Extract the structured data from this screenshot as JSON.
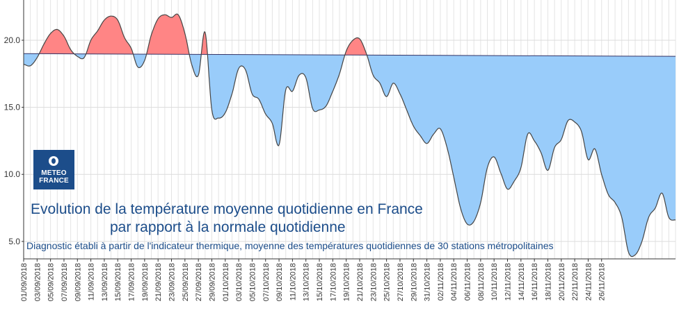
{
  "chart_data": {
    "type": "area",
    "title": "Evolution de la température moyenne quotidienne en France",
    "title_line2": "par rapport à la normale quotidienne",
    "subtitle": "Diagnostic établi à partir de l'indicateur thermique, moyenne des températures quotidiennes de 30 stations métropolitaines",
    "xlabel": "",
    "ylabel": "",
    "ylim": [
      3.7,
      23
    ],
    "y_ticks": [
      "5.0",
      "10.0",
      "15.0",
      "20.0"
    ],
    "x_ticks": [
      "01/09/2018",
      "03/09/2018",
      "05/09/2018",
      "07/09/2018",
      "09/09/2018",
      "11/09/2018",
      "13/09/2018",
      "15/09/2018",
      "17/09/2018",
      "19/09/2018",
      "21/09/2018",
      "23/09/2018",
      "25/09/2018",
      "27/09/2018",
      "29/09/2018",
      "01/10/2018",
      "03/10/2018",
      "05/10/2018",
      "07/10/2018",
      "09/10/2018",
      "11/10/2018",
      "13/10/2018",
      "15/10/2018",
      "17/10/2018",
      "19/10/2018",
      "21/10/2018",
      "23/10/2018",
      "25/10/2018",
      "27/10/2018",
      "29/10/2018",
      "31/10/2018",
      "02/11/2018",
      "04/11/2018",
      "06/11/2018",
      "08/11/2018",
      "10/11/2018",
      "12/11/2018",
      "14/11/2018",
      "16/11/2018",
      "18/11/2018",
      "20/11/2018",
      "22/11/2018",
      "24/11/2018",
      "26/11/2018"
    ],
    "grid": true,
    "series": [
      {
        "values": [
          18.2,
          18.1,
          18.7,
          19.7,
          20.5,
          20.8,
          20.3,
          19.3,
          18.8,
          18.7,
          20.0,
          20.7,
          21.5,
          21.8,
          21.5,
          20.2,
          19.4,
          18.0,
          18.5,
          20.4,
          21.6,
          21.9,
          21.7,
          21.9,
          20.5,
          18.2,
          17.4,
          20.6,
          14.8,
          14.2,
          14.6,
          16.0,
          17.9,
          17.8,
          16.0,
          15.6,
          14.5,
          13.8,
          12.2,
          16.3,
          16.2,
          17.4,
          17.2,
          14.9,
          14.8,
          15.1,
          16.2,
          17.5,
          19.2,
          20.0,
          20.1,
          19.0,
          17.4,
          16.8,
          15.8,
          16.8,
          16.0,
          14.8,
          13.6,
          12.9,
          12.3,
          13.0,
          13.4,
          12.0,
          9.8,
          7.5,
          6.3,
          6.5,
          7.9,
          10.5,
          11.3,
          10.1,
          8.9,
          9.5,
          10.5,
          13.0,
          12.5,
          11.6,
          10.3,
          12.0,
          12.6,
          14.0,
          13.9,
          13.2,
          11.1,
          11.9,
          10.0,
          8.5,
          7.9,
          6.8,
          4.2,
          4.0,
          5.0,
          6.8,
          7.5,
          8.6,
          6.8,
          6.6
        ]
      },
      {
        "values": [
          19.0,
          18.8
        ]
      }
    ]
  },
  "watermark": {
    "line1": "METEO",
    "line2": "FRANCE"
  },
  "colors": {
    "above": "#ff8585",
    "below": "#99ccfa",
    "line": "#444444",
    "normal_line": "#333366",
    "text": "#1c4d8a"
  }
}
